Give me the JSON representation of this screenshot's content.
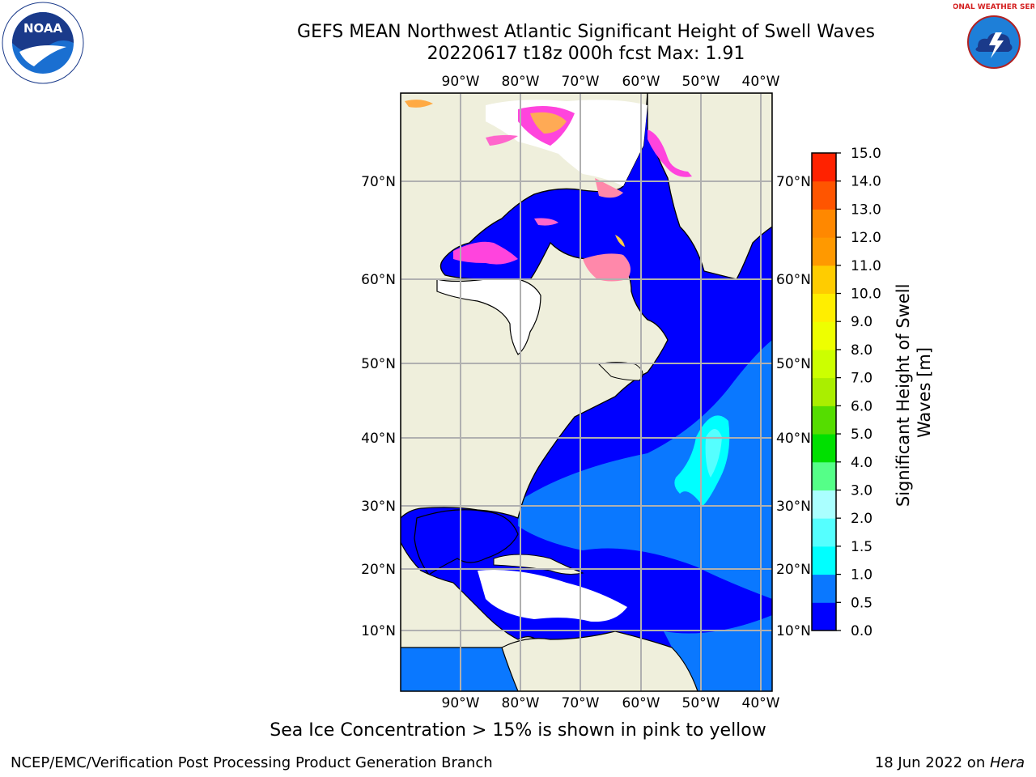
{
  "title": {
    "line1": "GEFS MEAN Northwest Atlantic Significant Height of Swell Waves",
    "line2": "20220617 t18z 000h fcst   Max: 1.91"
  },
  "logos": {
    "left": {
      "icon": "noaa-logo",
      "text": "NOAA"
    },
    "right": {
      "icon": "nws-logo",
      "text": "NATIONAL WEATHER SERVICE"
    }
  },
  "map": {
    "lon_labels": [
      "90°W",
      "80°W",
      "70°W",
      "60°W",
      "50°W",
      "40°W"
    ],
    "lat_labels": [
      "70°N",
      "60°N",
      "50°N",
      "40°N",
      "30°N",
      "20°N",
      "10°N"
    ],
    "colors": {
      "land": "#efefdc",
      "no_data": "#ffffff",
      "grid": "#b0b0b0",
      "coast": "#000000"
    }
  },
  "colorbar": {
    "label": "Significant Height of Swell Waves [m]",
    "ticks": [
      "0.0",
      "0.5",
      "1.0",
      "1.5",
      "2.0",
      "3.0",
      "4.0",
      "5.0",
      "6.0",
      "7.0",
      "8.0",
      "9.0",
      "10.0",
      "11.0",
      "12.0",
      "13.0",
      "14.0",
      "15.0"
    ],
    "colors": [
      "#0000ff",
      "#0a78ff",
      "#00ffff",
      "#55ffff",
      "#aaffff",
      "#55ff88",
      "#00e000",
      "#55dd00",
      "#aaee00",
      "#ccff00",
      "#eeff00",
      "#ffee00",
      "#ffcc00",
      "#ff9900",
      "#ff8800",
      "#ff5500",
      "#ff2200",
      "#ff0000"
    ]
  },
  "caption": "Sea Ice Concentration > 15% is shown in pink to yellow",
  "footer": {
    "left": "NCEP/EMC/Verification Post Processing Product Generation Branch",
    "right_date": "18 Jun 2022 on ",
    "right_machine": "Hera"
  }
}
